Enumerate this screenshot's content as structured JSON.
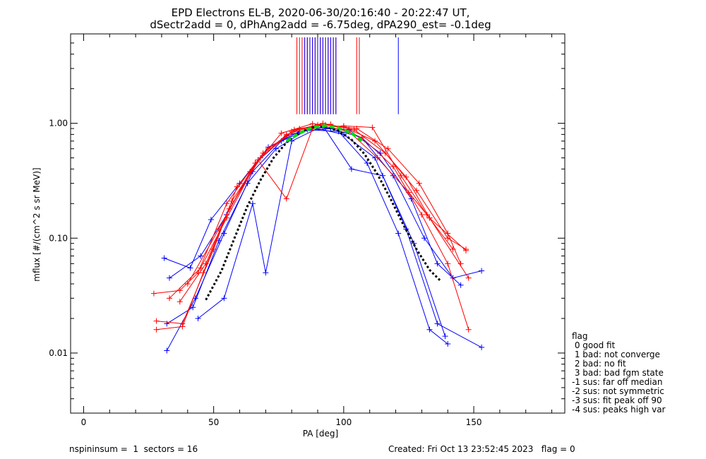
{
  "title_line1": "EPD Electrons EL-B, 2020-06-30/20:16:40 - 20:22:47 UT,",
  "title_line2": "dSectr2add = 0, dPhAng2add = -6.75deg, dPA290_est=  -0.1deg",
  "legend": {
    "title": "flag",
    "items": [
      " 0 good fit",
      " 1 bad: not converge",
      " 2 bad: no fit",
      " 3 bad: bad fgm state",
      "-1 sus: far off median",
      "-2 sus: not symmetric",
      "-3 sus: fit peak off 90",
      "-4 sus: peaks high var"
    ]
  },
  "footer": {
    "left": "nspininsum =  1  sectors = 16",
    "right": "Created: Fri Oct 13 23:52:45 2023   flag = 0"
  },
  "colors": {
    "blue": "#0000ff",
    "red": "#ff0000",
    "green": "#00dd00",
    "black": "#000000"
  },
  "chart_data": {
    "type": "line",
    "xlabel": "PA [deg]",
    "ylabel": "mflux [#/(cm^2 s sr MeV)]",
    "xlim": [
      -5,
      185
    ],
    "ylim": [
      0.003,
      6.0
    ],
    "yscale": "log",
    "xticks": [
      0,
      50,
      100,
      150
    ],
    "xtick_labels": [
      "0",
      "50",
      "100",
      "150"
    ],
    "yticks": [
      0.01,
      0.1,
      1.0
    ],
    "ytick_labels": [
      "0.01",
      "0.10",
      "1.00"
    ],
    "series": [
      {
        "color": "red",
        "kind": "typical",
        "points": [
          [
            27,
            0.033
          ],
          [
            37,
            0.035
          ],
          [
            44,
            0.05
          ],
          [
            55,
            0.2
          ],
          [
            66,
            0.45
          ],
          [
            78,
            0.8
          ],
          [
            90,
            0.97
          ],
          [
            102,
            0.85
          ],
          [
            113,
            0.5
          ],
          [
            125,
            0.25
          ],
          [
            133,
            0.15
          ],
          [
            148,
            0.045
          ]
        ]
      },
      {
        "color": "red",
        "kind": "typical",
        "points": [
          [
            28,
            0.019
          ],
          [
            38,
            0.018
          ],
          [
            50,
            0.08
          ],
          [
            59,
            0.28
          ],
          [
            71,
            0.6
          ],
          [
            83,
            0.9
          ],
          [
            95,
            0.98
          ],
          [
            107,
            0.75
          ],
          [
            119,
            0.42
          ],
          [
            130,
            0.16
          ],
          [
            140,
            0.06
          ],
          [
            148,
            0.016
          ]
        ]
      },
      {
        "color": "red",
        "kind": "typical",
        "points": [
          [
            28,
            0.016
          ],
          [
            38,
            0.017
          ],
          [
            46,
            0.05
          ],
          [
            56,
            0.18
          ],
          [
            68,
            0.5
          ],
          [
            80,
            0.85
          ],
          [
            92,
            1.0
          ],
          [
            104,
            0.88
          ],
          [
            116,
            0.55
          ],
          [
            128,
            0.26
          ],
          [
            140,
            0.1
          ],
          [
            147,
            0.08
          ]
        ]
      },
      {
        "color": "red",
        "kind": "typical",
        "points": [
          [
            37,
            0.028
          ],
          [
            47,
            0.06
          ],
          [
            57,
            0.21
          ],
          [
            69,
            0.55
          ],
          [
            81,
            0.88
          ],
          [
            93,
            0.97
          ],
          [
            105,
            0.9
          ],
          [
            117,
            0.6
          ],
          [
            129,
            0.3
          ],
          [
            140,
            0.11
          ],
          [
            145,
            0.06
          ]
        ]
      },
      {
        "color": "red",
        "kind": "typical",
        "points": [
          [
            33,
            0.03
          ],
          [
            45,
            0.055
          ],
          [
            55,
            0.15
          ],
          [
            67,
            0.48
          ],
          [
            78,
            0.22
          ],
          [
            88,
            0.9
          ],
          [
            100,
            0.95
          ],
          [
            111,
            0.92
          ],
          [
            122,
            0.35
          ],
          [
            132,
            0.16
          ],
          [
            142,
            0.08
          ]
        ]
      },
      {
        "color": "red",
        "kind": "typical",
        "points": [
          [
            40,
            0.04
          ],
          [
            52,
            0.12
          ],
          [
            64,
            0.38
          ],
          [
            76,
            0.82
          ],
          [
            88,
            0.99
          ],
          [
            100,
            0.93
          ],
          [
            112,
            0.7
          ],
          [
            124,
            0.34
          ],
          [
            133,
            0.15
          ],
          [
            147,
            0.078
          ]
        ]
      },
      {
        "color": "blue",
        "kind": "typical",
        "points": [
          [
            31,
            0.067
          ],
          [
            41,
            0.055
          ],
          [
            49,
            0.145
          ],
          [
            60,
            0.3
          ],
          [
            71,
            0.62
          ],
          [
            83,
            0.85
          ],
          [
            95,
            0.9
          ],
          [
            107,
            0.75
          ],
          [
            119,
            0.35
          ],
          [
            131,
            0.1
          ],
          [
            142,
            0.045
          ],
          [
            153,
            0.052
          ]
        ]
      },
      {
        "color": "blue",
        "kind": "typical",
        "points": [
          [
            32,
            0.0105
          ],
          [
            43,
            0.03
          ],
          [
            54,
            0.11
          ],
          [
            65,
            0.38
          ],
          [
            76,
            0.7
          ],
          [
            88,
            0.92
          ],
          [
            100,
            0.8
          ],
          [
            112,
            0.5
          ],
          [
            124,
            0.12
          ],
          [
            136,
            0.018
          ],
          [
            153,
            0.0112
          ]
        ]
      },
      {
        "color": "blue",
        "kind": "typical",
        "points": [
          [
            32,
            0.018
          ],
          [
            42,
            0.025
          ],
          [
            52,
            0.095
          ],
          [
            63,
            0.3
          ],
          [
            74,
            0.6
          ],
          [
            86,
            0.88
          ],
          [
            98,
            0.85
          ],
          [
            109,
            0.45
          ],
          [
            121,
            0.11
          ],
          [
            133,
            0.016
          ],
          [
            140,
            0.012
          ]
        ]
      },
      {
        "color": "blue",
        "kind": "typical",
        "points": [
          [
            33,
            0.045
          ],
          [
            45,
            0.07
          ],
          [
            55,
            0.16
          ],
          [
            66,
            0.45
          ],
          [
            78,
            0.78
          ],
          [
            90,
            0.92
          ],
          [
            102,
            0.88
          ],
          [
            114,
            0.55
          ],
          [
            126,
            0.22
          ],
          [
            136,
            0.06
          ],
          [
            145,
            0.039
          ]
        ]
      },
      {
        "color": "blue",
        "kind": "typical",
        "points": [
          [
            44,
            0.02
          ],
          [
            54,
            0.03
          ],
          [
            65,
            0.2
          ],
          [
            70,
            0.05
          ],
          [
            80,
            0.7
          ],
          [
            92,
            0.95
          ],
          [
            103,
            0.4
          ],
          [
            115,
            0.35
          ],
          [
            127,
            0.09
          ],
          [
            139,
            0.014
          ]
        ]
      },
      {
        "color": "black",
        "kind": "fit",
        "points": [
          [
            47,
            0.029
          ],
          [
            53,
            0.052
          ],
          [
            58,
            0.1
          ],
          [
            63,
            0.19
          ],
          [
            68,
            0.32
          ],
          [
            73,
            0.5
          ],
          [
            78,
            0.68
          ],
          [
            83,
            0.83
          ],
          [
            88,
            0.92
          ],
          [
            93,
            0.93
          ],
          [
            98,
            0.86
          ],
          [
            103,
            0.72
          ],
          [
            108,
            0.54
          ],
          [
            113,
            0.36
          ],
          [
            118,
            0.22
          ],
          [
            123,
            0.13
          ],
          [
            128,
            0.08
          ],
          [
            133,
            0.053
          ],
          [
            137,
            0.043
          ]
        ]
      },
      {
        "color": "green",
        "kind": "median",
        "points": [
          [
            78,
            0.7
          ],
          [
            83,
            0.82
          ],
          [
            88,
            0.92
          ],
          [
            93,
            0.95
          ],
          [
            98,
            0.91
          ],
          [
            103,
            0.82
          ],
          [
            108,
            0.68
          ]
        ]
      }
    ],
    "vlines": {
      "y_from": 1.2,
      "y_to": 5.6,
      "red": [
        82,
        83,
        84,
        85,
        86,
        87,
        88,
        89,
        90,
        91,
        92,
        93,
        94,
        95,
        96,
        97,
        105,
        106
      ],
      "blue": [
        85,
        86,
        87,
        88,
        89,
        90,
        91,
        92,
        93,
        94,
        95,
        96,
        97,
        121
      ]
    }
  }
}
